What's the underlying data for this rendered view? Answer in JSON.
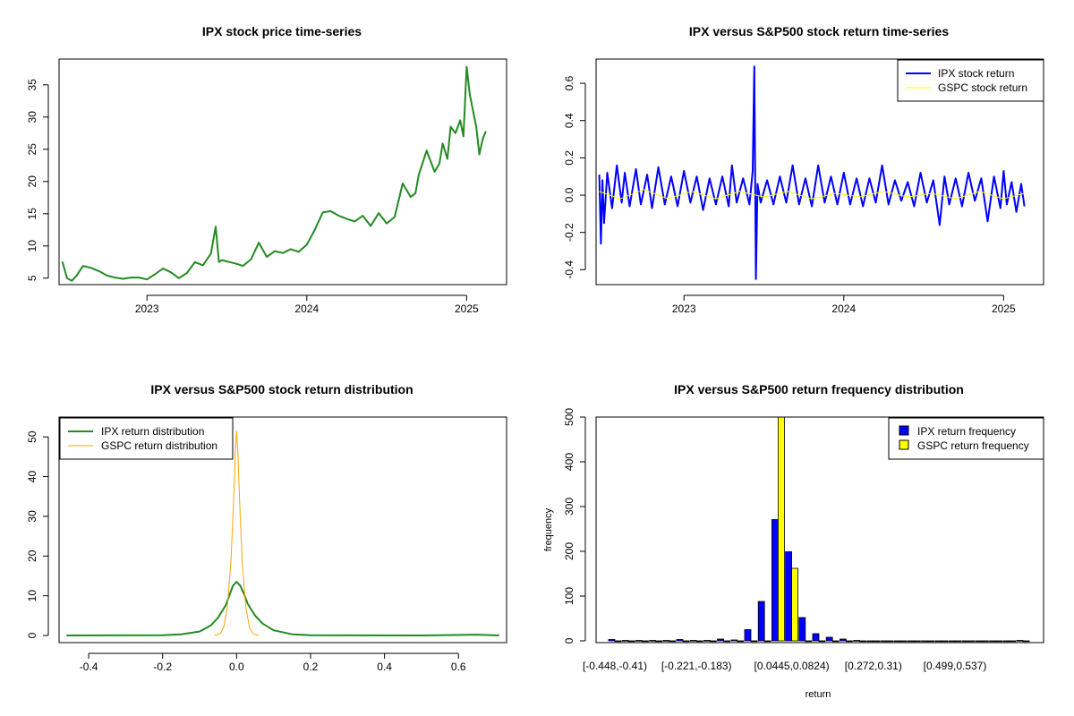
{
  "colors": {
    "green": "#228B22",
    "blue": "#0000FF",
    "yellow": "#FFFF00",
    "orange": "#FFA500",
    "axis": "#000000"
  },
  "chart_data": [
    {
      "type": "line",
      "title": "IPX stock price time-series",
      "xlabel": "",
      "ylabel": "",
      "x_tick_labels": [
        "2023",
        "2024",
        "2025"
      ],
      "x_tick_values": [
        2023.0,
        2024.0,
        2025.0
      ],
      "xlim": [
        2022.45,
        2025.25
      ],
      "y_ticks": [
        5,
        10,
        15,
        20,
        25,
        30,
        35
      ],
      "ylim": [
        4.0,
        39.0
      ],
      "series": [
        {
          "name": "IPX stock price",
          "color": "#228B22",
          "x": [
            2022.47,
            2022.5,
            2022.53,
            2022.56,
            2022.6,
            2022.65,
            2022.7,
            2022.75,
            2022.8,
            2022.85,
            2022.9,
            2022.95,
            2023.0,
            2023.05,
            2023.1,
            2023.15,
            2023.2,
            2023.25,
            2023.3,
            2023.35,
            2023.4,
            2023.43,
            2023.45,
            2023.47,
            2023.5,
            2023.55,
            2023.6,
            2023.65,
            2023.7,
            2023.75,
            2023.8,
            2023.85,
            2023.9,
            2023.95,
            2024.0,
            2024.05,
            2024.1,
            2024.15,
            2024.2,
            2024.25,
            2024.3,
            2024.35,
            2024.4,
            2024.45,
            2024.5,
            2024.55,
            2024.6,
            2024.65,
            2024.68,
            2024.7,
            2024.75,
            2024.8,
            2024.83,
            2024.85,
            2024.88,
            2024.9,
            2024.93,
            2024.96,
            2024.98,
            2025.0,
            2025.02,
            2025.04,
            2025.06,
            2025.08,
            2025.1,
            2025.12
          ],
          "values": [
            7.6,
            5.0,
            4.6,
            5.4,
            6.9,
            6.6,
            6.1,
            5.4,
            5.1,
            4.9,
            5.1,
            5.1,
            4.8,
            5.6,
            6.5,
            5.9,
            5.0,
            5.8,
            7.5,
            7.0,
            8.8,
            13.0,
            7.5,
            7.8,
            7.6,
            7.3,
            6.9,
            7.9,
            10.5,
            8.3,
            9.2,
            8.9,
            9.5,
            9.1,
            10.2,
            12.5,
            15.2,
            15.4,
            14.7,
            14.2,
            13.8,
            14.7,
            13.1,
            15.1,
            13.5,
            14.5,
            19.7,
            17.6,
            18.2,
            21.0,
            24.8,
            21.5,
            22.8,
            25.9,
            23.5,
            28.5,
            27.5,
            29.5,
            27.0,
            37.8,
            33.5,
            31.0,
            28.5,
            24.2,
            26.5,
            27.8
          ]
        }
      ]
    },
    {
      "type": "line",
      "title": "IPX versus S&P500 stock return time-series",
      "xlabel": "",
      "ylabel": "",
      "x_tick_labels": [
        "2023",
        "2024",
        "2025"
      ],
      "x_tick_values": [
        2023.0,
        2024.0,
        2025.0
      ],
      "xlim": [
        2022.45,
        2025.25
      ],
      "y_ticks": [
        -0.4,
        -0.2,
        0.0,
        0.2,
        0.4,
        0.6
      ],
      "y_tick_labels": [
        "-0.4",
        "-0.2",
        "0.0",
        "0.2",
        "0.4",
        "0.6"
      ],
      "ylim": [
        -0.48,
        0.73
      ],
      "legend": {
        "position": "top-right",
        "entries": [
          "IPX stock return",
          "GSPC stock return"
        ]
      },
      "series": [
        {
          "name": "IPX stock return",
          "color": "#0000FF",
          "x": [
            2022.47,
            2022.48,
            2022.49,
            2022.5,
            2022.52,
            2022.55,
            2022.58,
            2022.61,
            2022.63,
            2022.66,
            2022.7,
            2022.73,
            2022.77,
            2022.8,
            2022.84,
            2022.88,
            2022.92,
            2022.96,
            2023.0,
            2023.04,
            2023.08,
            2023.12,
            2023.16,
            2023.2,
            2023.24,
            2023.28,
            2023.3,
            2023.33,
            2023.37,
            2023.41,
            2023.43,
            2023.44,
            2023.45,
            2023.46,
            2023.48,
            2023.52,
            2023.56,
            2023.6,
            2023.64,
            2023.68,
            2023.72,
            2023.76,
            2023.8,
            2023.84,
            2023.88,
            2023.92,
            2023.96,
            2024.0,
            2024.04,
            2024.08,
            2024.12,
            2024.16,
            2024.2,
            2024.24,
            2024.28,
            2024.32,
            2024.36,
            2024.4,
            2024.44,
            2024.48,
            2024.52,
            2024.56,
            2024.6,
            2024.63,
            2024.66,
            2024.7,
            2024.74,
            2024.78,
            2024.82,
            2024.86,
            2024.9,
            2024.94,
            2024.98,
            2025.0,
            2025.02,
            2025.05,
            2025.08,
            2025.11,
            2025.13
          ],
          "values": [
            0.11,
            -0.26,
            0.08,
            -0.15,
            0.12,
            -0.07,
            0.16,
            -0.04,
            0.12,
            -0.06,
            0.14,
            -0.05,
            0.11,
            -0.07,
            0.15,
            -0.05,
            0.1,
            -0.06,
            0.13,
            -0.04,
            0.1,
            -0.08,
            0.09,
            -0.05,
            0.1,
            -0.06,
            0.16,
            -0.04,
            0.09,
            -0.05,
            0.13,
            0.69,
            -0.45,
            0.06,
            -0.04,
            0.08,
            -0.05,
            0.1,
            -0.04,
            0.16,
            -0.05,
            0.09,
            -0.06,
            0.16,
            -0.04,
            0.1,
            -0.05,
            0.12,
            -0.05,
            0.09,
            -0.06,
            0.09,
            -0.04,
            0.16,
            -0.05,
            0.08,
            -0.03,
            0.07,
            -0.06,
            0.12,
            -0.04,
            0.08,
            -0.16,
            0.1,
            -0.05,
            0.09,
            -0.06,
            0.12,
            -0.03,
            0.09,
            -0.14,
            0.1,
            -0.07,
            0.13,
            -0.05,
            0.07,
            -0.09,
            0.06,
            -0.06
          ]
        },
        {
          "name": "GSPC stock return",
          "color": "#FFFF00",
          "x": [
            2022.47,
            2022.6,
            2022.75,
            2022.9,
            2023.05,
            2023.2,
            2023.35,
            2023.5,
            2023.65,
            2023.8,
            2023.95,
            2024.1,
            2024.25,
            2024.4,
            2024.55,
            2024.7,
            2024.85,
            2025.0,
            2025.13
          ],
          "values": [
            0.02,
            -0.02,
            0.03,
            -0.02,
            0.02,
            -0.02,
            0.02,
            -0.01,
            0.02,
            -0.02,
            0.01,
            -0.01,
            0.02,
            -0.01,
            0.01,
            -0.02,
            0.02,
            -0.02,
            0.01
          ]
        }
      ]
    },
    {
      "type": "line",
      "title": "IPX versus S&P500 stock return distribution",
      "xlabel": "",
      "ylabel": "",
      "x_ticks": [
        -0.4,
        -0.2,
        0.0,
        0.2,
        0.4,
        0.6
      ],
      "x_tick_labels": [
        "-0.4",
        "-0.2",
        "0.0",
        "0.2",
        "0.4",
        "0.6"
      ],
      "xlim": [
        -0.48,
        0.73
      ],
      "y_ticks": [
        0,
        10,
        20,
        30,
        40,
        50
      ],
      "ylim": [
        -1.8,
        55
      ],
      "legend": {
        "position": "top-left",
        "entries": [
          "IPX return distribution",
          "GSPC return distribution"
        ]
      },
      "series": [
        {
          "name": "IPX return distribution",
          "color": "#228B22",
          "x": [
            -0.46,
            -0.2,
            -0.15,
            -0.1,
            -0.07,
            -0.05,
            -0.03,
            -0.02,
            -0.01,
            0.0,
            0.01,
            0.02,
            0.03,
            0.05,
            0.07,
            0.1,
            0.15,
            0.2,
            0.3,
            0.5,
            0.65,
            0.71
          ],
          "values": [
            0.0,
            0.05,
            0.3,
            1.0,
            2.5,
            4.5,
            7.5,
            10.0,
            12.5,
            13.5,
            12.5,
            10.5,
            8.0,
            5.0,
            3.0,
            1.3,
            0.3,
            0.05,
            0.02,
            0.0,
            0.2,
            0.0
          ]
        },
        {
          "name": "GSPC return distribution",
          "color": "#FFA500",
          "x": [
            -0.06,
            -0.045,
            -0.035,
            -0.025,
            -0.015,
            -0.008,
            -0.003,
            0.0,
            0.003,
            0.008,
            0.015,
            0.025,
            0.035,
            0.045,
            0.06
          ],
          "values": [
            0.0,
            0.4,
            2.0,
            7.0,
            19.0,
            34.0,
            47.0,
            51.5,
            47.0,
            34.0,
            19.0,
            7.0,
            2.0,
            0.4,
            0.0
          ]
        }
      ]
    },
    {
      "type": "bar",
      "title": "IPX versus S&P500 return frequency distribution",
      "xlabel": "return",
      "ylabel": "frequency",
      "x_tick_labels": [
        "[-0.448,-0.41)",
        "[-0.221,-0.183)",
        "[0.0445,0.0824)",
        "[0.272,0.31)",
        "[0.499,0.537)"
      ],
      "x_tick_bins": [
        0,
        6,
        13,
        19,
        25
      ],
      "bin_count": 31,
      "y_ticks": [
        0,
        100,
        200,
        300,
        400,
        500
      ],
      "ylim": [
        0,
        500
      ],
      "legend": {
        "position": "top-right",
        "entries": [
          "IPX return frequency",
          "GSPC return frequency"
        ]
      },
      "series": [
        {
          "name": "IPX return frequency",
          "color": "#0000FF",
          "values": [
            3,
            1,
            1,
            1,
            1,
            3,
            1,
            1,
            4,
            2,
            25,
            88,
            271,
            199,
            52,
            16,
            8,
            4,
            1,
            0,
            0,
            0,
            0,
            0,
            0,
            0,
            0,
            0,
            0,
            0,
            1
          ]
        },
        {
          "name": "GSPC return frequency",
          "color": "#FFFF00",
          "values": [
            0,
            0,
            0,
            0,
            0,
            0,
            0,
            0,
            0,
            0,
            0,
            0,
            500,
            162,
            0,
            0,
            0,
            0,
            0,
            0,
            0,
            0,
            0,
            0,
            0,
            0,
            0,
            0,
            0,
            0,
            0
          ]
        }
      ]
    }
  ]
}
